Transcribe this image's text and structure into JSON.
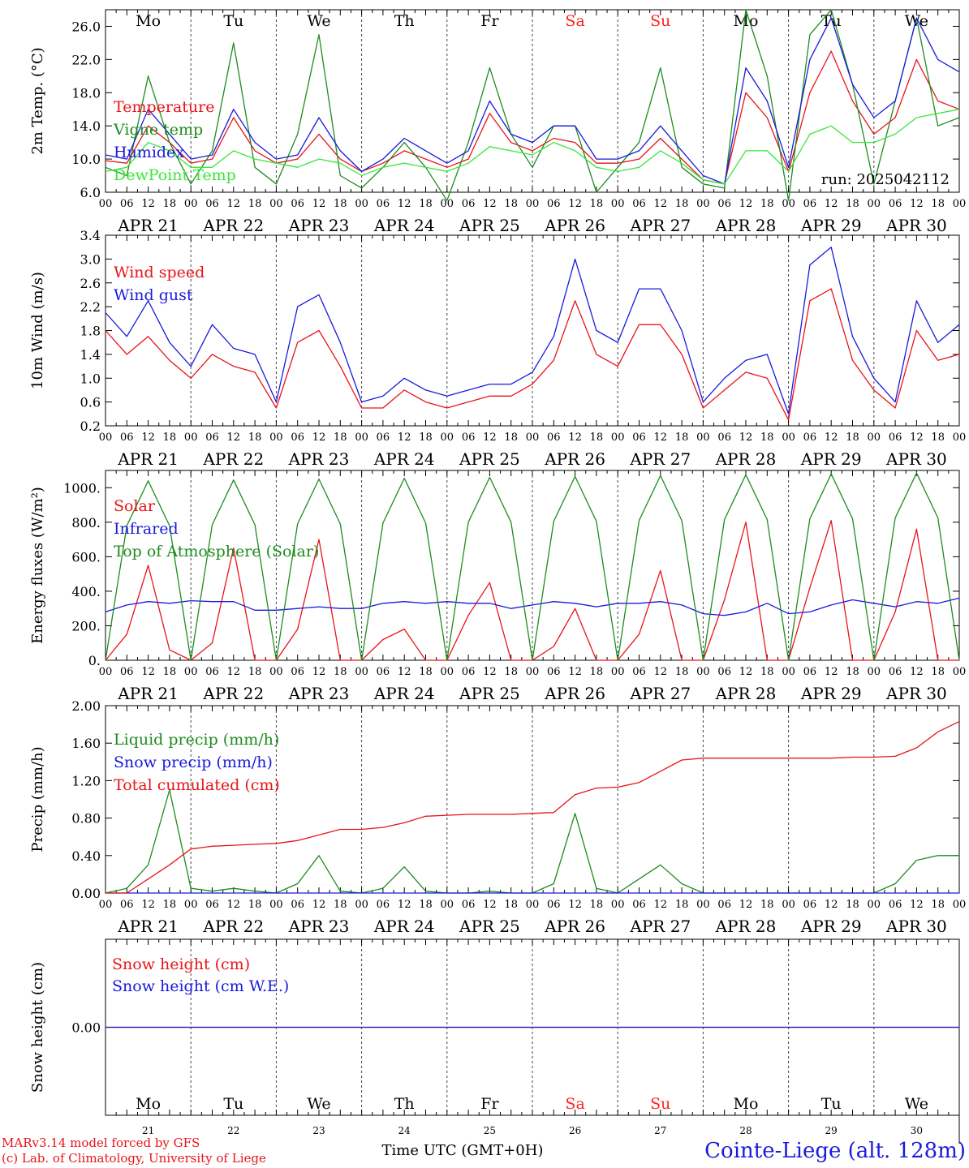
{
  "colors": {
    "red": "#e8141a",
    "green": "#1e8c1e",
    "blue": "#1a1adc",
    "lightgreen": "#3ce63c",
    "weekend": "#ff2020"
  },
  "days": {
    "weekday": [
      "Mo",
      "Tu",
      "We",
      "Th",
      "Fr",
      "Sa",
      "Su",
      "Mo",
      "Tu",
      "We"
    ],
    "weekend": [
      false,
      false,
      false,
      false,
      false,
      true,
      true,
      false,
      false,
      false
    ],
    "date_labels": [
      "APR 21",
      "APR 22",
      "APR 23",
      "APR 24",
      "APR 25",
      "APR 26",
      "APR 27",
      "APR 28",
      "APR 29",
      "APR 30"
    ],
    "day_numbers": [
      "21",
      "22",
      "23",
      "24",
      "25",
      "26",
      "27",
      "28",
      "29",
      "30"
    ],
    "hour_ticks": [
      "00",
      "06",
      "12",
      "18"
    ],
    "final_hour": "00"
  },
  "footer": {
    "model_line": "MARv3.14 model forced by GFS",
    "credit_line": "(c) Lab. of Climatology, University of Liege",
    "xlabel": "Time UTC (GMT+0H)",
    "station": "Cointe-Liege (alt. 128m)"
  },
  "chart_data": [
    {
      "id": "temp",
      "type": "line",
      "ylabel": "2m Temp. (°C)",
      "ylim": [
        6,
        28
      ],
      "yticks": [
        "6.0",
        "10.0",
        "14.0",
        "18.0",
        "22.0",
        "26.0"
      ],
      "annotation": "run: 2025042112",
      "x_days": [
        0,
        0.25,
        0.5,
        0.75,
        1,
        1.25,
        1.5,
        1.75,
        2,
        2.25,
        2.5,
        2.75,
        3,
        3.25,
        3.5,
        3.75,
        4,
        4.25,
        4.5,
        4.75,
        5,
        5.25,
        5.5,
        5.75,
        6,
        6.25,
        6.5,
        6.75,
        7,
        7.25,
        7.5,
        7.75,
        8,
        8.25,
        8.5,
        8.75,
        9,
        9.25,
        9.5,
        9.75,
        10
      ],
      "series": [
        {
          "name": "Temperature",
          "color": "red",
          "values": [
            9.8,
            9.5,
            14,
            12,
            9.5,
            10,
            15,
            11,
            9.5,
            10,
            13,
            10,
            8.5,
            9.5,
            11,
            10,
            9,
            10,
            15.5,
            12,
            11,
            12.5,
            12,
            9.5,
            9.5,
            10,
            12.5,
            10,
            7.5,
            7,
            18,
            15,
            8.5,
            18,
            23,
            17,
            13,
            15,
            22,
            17,
            16
          ]
        },
        {
          "name": "Vigne temp",
          "color": "green",
          "values": [
            9,
            8,
            20,
            12,
            7,
            11,
            24,
            9,
            7,
            13,
            25,
            8,
            6.5,
            9,
            12,
            9,
            5,
            12,
            21,
            13,
            9,
            14,
            14,
            6,
            9,
            12,
            21,
            9,
            7,
            6.5,
            28,
            20,
            5,
            25,
            28,
            19,
            7,
            17,
            27,
            14,
            15
          ]
        },
        {
          "name": "Humidex",
          "color": "blue",
          "values": [
            10.5,
            10,
            16,
            13,
            10,
            10.5,
            16,
            12,
            10,
            10.5,
            15,
            11,
            8.5,
            10,
            12.5,
            11,
            9.5,
            11,
            17,
            13,
            12,
            14,
            14,
            10,
            10,
            11,
            14,
            11,
            8,
            7,
            21,
            17,
            9,
            22,
            27,
            19,
            15,
            17,
            27,
            22,
            20.5
          ]
        },
        {
          "name": "DewPoint Temp",
          "color": "lightgreen",
          "values": [
            8.5,
            9,
            12,
            11,
            9,
            9,
            11,
            10,
            9.5,
            9,
            10,
            9.5,
            8,
            9,
            9.5,
            9,
            8.5,
            9.5,
            11.5,
            11,
            10.5,
            12,
            11,
            9,
            8.5,
            9,
            11,
            9.5,
            7.5,
            7,
            11,
            11,
            8.5,
            13,
            14,
            12,
            12,
            13,
            15,
            15.5,
            16
          ]
        }
      ]
    },
    {
      "id": "wind",
      "type": "line",
      "ylabel": "10m Wind (m/s)",
      "ylim": [
        0.2,
        3.4
      ],
      "yticks": [
        "0.2",
        "0.6",
        "1.0",
        "1.4",
        "1.8",
        "2.2",
        "2.6",
        "3.0",
        "3.4"
      ],
      "x_days": [
        0,
        0.25,
        0.5,
        0.75,
        1,
        1.25,
        1.5,
        1.75,
        2,
        2.25,
        2.5,
        2.75,
        3,
        3.25,
        3.5,
        3.75,
        4,
        4.25,
        4.5,
        4.75,
        5,
        5.25,
        5.5,
        5.75,
        6,
        6.25,
        6.5,
        6.75,
        7,
        7.25,
        7.5,
        7.75,
        8,
        8.25,
        8.5,
        8.75,
        9,
        9.25,
        9.5,
        9.75,
        10
      ],
      "series": [
        {
          "name": "Wind speed",
          "color": "red",
          "values": [
            1.8,
            1.4,
            1.7,
            1.3,
            1.0,
            1.4,
            1.2,
            1.1,
            0.5,
            1.6,
            1.8,
            1.2,
            0.5,
            0.5,
            0.8,
            0.6,
            0.5,
            0.6,
            0.7,
            0.7,
            0.9,
            1.3,
            2.3,
            1.4,
            1.2,
            1.9,
            1.9,
            1.4,
            0.5,
            0.8,
            1.1,
            1.0,
            0.3,
            2.3,
            2.5,
            1.3,
            0.8,
            0.5,
            1.8,
            1.3,
            1.4
          ]
        },
        {
          "name": "Wind gust",
          "color": "blue",
          "values": [
            2.1,
            1.7,
            2.3,
            1.6,
            1.2,
            1.9,
            1.5,
            1.4,
            0.6,
            2.2,
            2.4,
            1.6,
            0.6,
            0.7,
            1.0,
            0.8,
            0.7,
            0.8,
            0.9,
            0.9,
            1.1,
            1.7,
            3.0,
            1.8,
            1.6,
            2.5,
            2.5,
            1.8,
            0.6,
            1.0,
            1.3,
            1.4,
            0.4,
            2.9,
            3.2,
            1.7,
            1.0,
            0.6,
            2.3,
            1.6,
            1.9
          ]
        }
      ]
    },
    {
      "id": "energy",
      "type": "line",
      "ylabel": "Energy fluxes (W/m²)",
      "ylim": [
        0,
        1100
      ],
      "yticks": [
        "0.",
        "200.",
        "400.",
        "600.",
        "800.",
        "1000."
      ],
      "x_days": [
        0,
        0.25,
        0.5,
        0.75,
        1,
        1.25,
        1.5,
        1.75,
        2,
        2.25,
        2.5,
        2.75,
        3,
        3.25,
        3.5,
        3.75,
        4,
        4.25,
        4.5,
        4.75,
        5,
        5.25,
        5.5,
        5.75,
        6,
        6.25,
        6.5,
        6.75,
        7,
        7.25,
        7.5,
        7.75,
        8,
        8.25,
        8.5,
        8.75,
        9,
        9.25,
        9.5,
        9.75,
        10
      ],
      "series": [
        {
          "name": "Solar",
          "color": "red",
          "values": [
            0,
            150,
            550,
            60,
            0,
            100,
            650,
            0,
            0,
            180,
            700,
            0,
            0,
            120,
            180,
            0,
            0,
            260,
            450,
            0,
            0,
            80,
            300,
            0,
            0,
            150,
            520,
            0,
            0,
            350,
            800,
            0,
            0,
            420,
            810,
            0,
            0,
            280,
            760,
            0,
            0
          ]
        },
        {
          "name": "Infrared",
          "color": "blue",
          "values": [
            280,
            320,
            340,
            330,
            345,
            340,
            340,
            290,
            290,
            300,
            310,
            300,
            300,
            330,
            340,
            330,
            340,
            330,
            330,
            300,
            320,
            340,
            330,
            310,
            330,
            330,
            340,
            320,
            270,
            260,
            280,
            330,
            270,
            280,
            320,
            350,
            330,
            310,
            340,
            330,
            360
          ]
        },
        {
          "name": "Top of Atmosphere (Solar)",
          "color": "green",
          "values": [
            0,
            780,
            1040,
            780,
            0,
            785,
            1045,
            785,
            0,
            790,
            1050,
            790,
            0,
            795,
            1055,
            795,
            0,
            800,
            1060,
            800,
            0,
            805,
            1065,
            805,
            0,
            810,
            1070,
            810,
            0,
            815,
            1075,
            815,
            0,
            820,
            1080,
            820,
            0,
            825,
            1085,
            825,
            0
          ]
        }
      ]
    },
    {
      "id": "precip",
      "type": "line",
      "ylabel": "Precip (mm/h)",
      "ylim": [
        0,
        2.0
      ],
      "yticks": [
        "0.00",
        "0.40",
        "0.80",
        "1.20",
        "1.60",
        "2.00"
      ],
      "x_days": [
        0,
        0.25,
        0.5,
        0.75,
        1,
        1.25,
        1.5,
        1.75,
        2,
        2.25,
        2.5,
        2.75,
        3,
        3.25,
        3.5,
        3.75,
        4,
        4.25,
        4.5,
        4.75,
        5,
        5.25,
        5.5,
        5.75,
        6,
        6.25,
        6.5,
        6.75,
        7,
        7.25,
        7.5,
        7.75,
        8,
        8.25,
        8.5,
        8.75,
        9,
        9.25,
        9.5,
        9.75,
        10
      ],
      "series": [
        {
          "name": "Liquid precip (mm/h)",
          "color": "green",
          "values": [
            0,
            0.05,
            0.3,
            1.1,
            0.05,
            0.02,
            0.05,
            0.02,
            0,
            0.1,
            0.4,
            0.02,
            0,
            0.05,
            0.28,
            0.02,
            0,
            0,
            0.02,
            0,
            0,
            0.1,
            0.85,
            0.05,
            0,
            0.15,
            0.3,
            0.1,
            0,
            0,
            0,
            0,
            0,
            0,
            0,
            0,
            0,
            0.1,
            0.35,
            0.4,
            0.4
          ]
        },
        {
          "name": "Snow precip (mm/h)",
          "color": "blue",
          "values": [
            0,
            0,
            0,
            0,
            0,
            0,
            0,
            0,
            0,
            0,
            0,
            0,
            0,
            0,
            0,
            0,
            0,
            0,
            0,
            0,
            0,
            0,
            0,
            0,
            0,
            0,
            0,
            0,
            0,
            0,
            0,
            0,
            0,
            0,
            0,
            0,
            0,
            0,
            0,
            0,
            0
          ]
        },
        {
          "name": "Total cumulated (cm)",
          "color": "red",
          "values": [
            0,
            0,
            0.15,
            0.3,
            0.47,
            0.5,
            0.51,
            0.52,
            0.53,
            0.56,
            0.62,
            0.68,
            0.68,
            0.7,
            0.75,
            0.82,
            0.83,
            0.84,
            0.84,
            0.84,
            0.85,
            0.86,
            1.05,
            1.12,
            1.13,
            1.18,
            1.3,
            1.42,
            1.44,
            1.44,
            1.44,
            1.44,
            1.44,
            1.44,
            1.44,
            1.45,
            1.45,
            1.46,
            1.55,
            1.72,
            1.83
          ]
        }
      ]
    },
    {
      "id": "snow",
      "type": "line",
      "ylabel": "Snow height (cm)",
      "ylim": [
        -1,
        1
      ],
      "yticks": [
        "0.00"
      ],
      "x_days": [
        0,
        10
      ],
      "series": [
        {
          "name": "Snow height (cm)",
          "color": "red",
          "values": [
            0,
            0
          ]
        },
        {
          "name": "Snow height (cm W.E.)",
          "color": "blue",
          "values": [
            0,
            0
          ]
        }
      ]
    }
  ]
}
